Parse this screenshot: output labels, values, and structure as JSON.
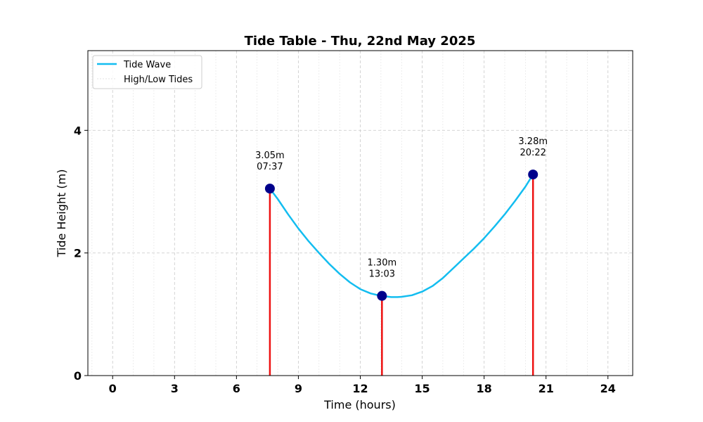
{
  "chart_data": {
    "type": "line",
    "title": "Tide Table - Thu, 22nd May 2025",
    "xlabel": "Time (hours)",
    "ylabel": "Tide Height (m)",
    "xlim": [
      -1.2,
      25.2
    ],
    "ylim": [
      0,
      5.3
    ],
    "x_ticks": [
      0,
      3,
      6,
      9,
      12,
      15,
      18,
      21,
      24
    ],
    "y_ticks": [
      0,
      2,
      4
    ],
    "x_minor_step": 1,
    "grid": true,
    "legend": {
      "placement": "upper-left",
      "entries": [
        {
          "label": "Tide Wave",
          "color": "#13bdf0"
        },
        {
          "label": "High/Low Tides",
          "color": "#d8d8d8"
        }
      ]
    },
    "series": [
      {
        "name": "Tide Wave",
        "color": "#13bdf0",
        "x": [
          7.62,
          8.0,
          8.5,
          9.0,
          9.5,
          10.0,
          10.5,
          11.0,
          11.5,
          12.0,
          12.5,
          13.0,
          13.5,
          13.8,
          14.0,
          14.5,
          15.0,
          15.5,
          16.0,
          16.5,
          17.0,
          17.5,
          18.0,
          18.5,
          19.0,
          19.5,
          20.0,
          20.37
        ],
        "y": [
          3.05,
          2.88,
          2.63,
          2.4,
          2.19,
          2.0,
          1.82,
          1.66,
          1.52,
          1.41,
          1.34,
          1.3,
          1.28,
          1.28,
          1.285,
          1.31,
          1.37,
          1.46,
          1.59,
          1.75,
          1.91,
          2.07,
          2.24,
          2.43,
          2.63,
          2.85,
          3.08,
          3.28
        ]
      }
    ],
    "tides": [
      {
        "x": 7.62,
        "height": 3.05,
        "label_height": "3.05m",
        "label_time": "07:37"
      },
      {
        "x": 13.05,
        "height": 1.3,
        "label_height": "1.30m",
        "label_time": "13:03"
      },
      {
        "x": 20.37,
        "height": 3.28,
        "label_height": "3.28m",
        "label_time": "20:22"
      }
    ],
    "tide_line_color": "#ee1111",
    "tide_marker_color": "#00008b"
  }
}
